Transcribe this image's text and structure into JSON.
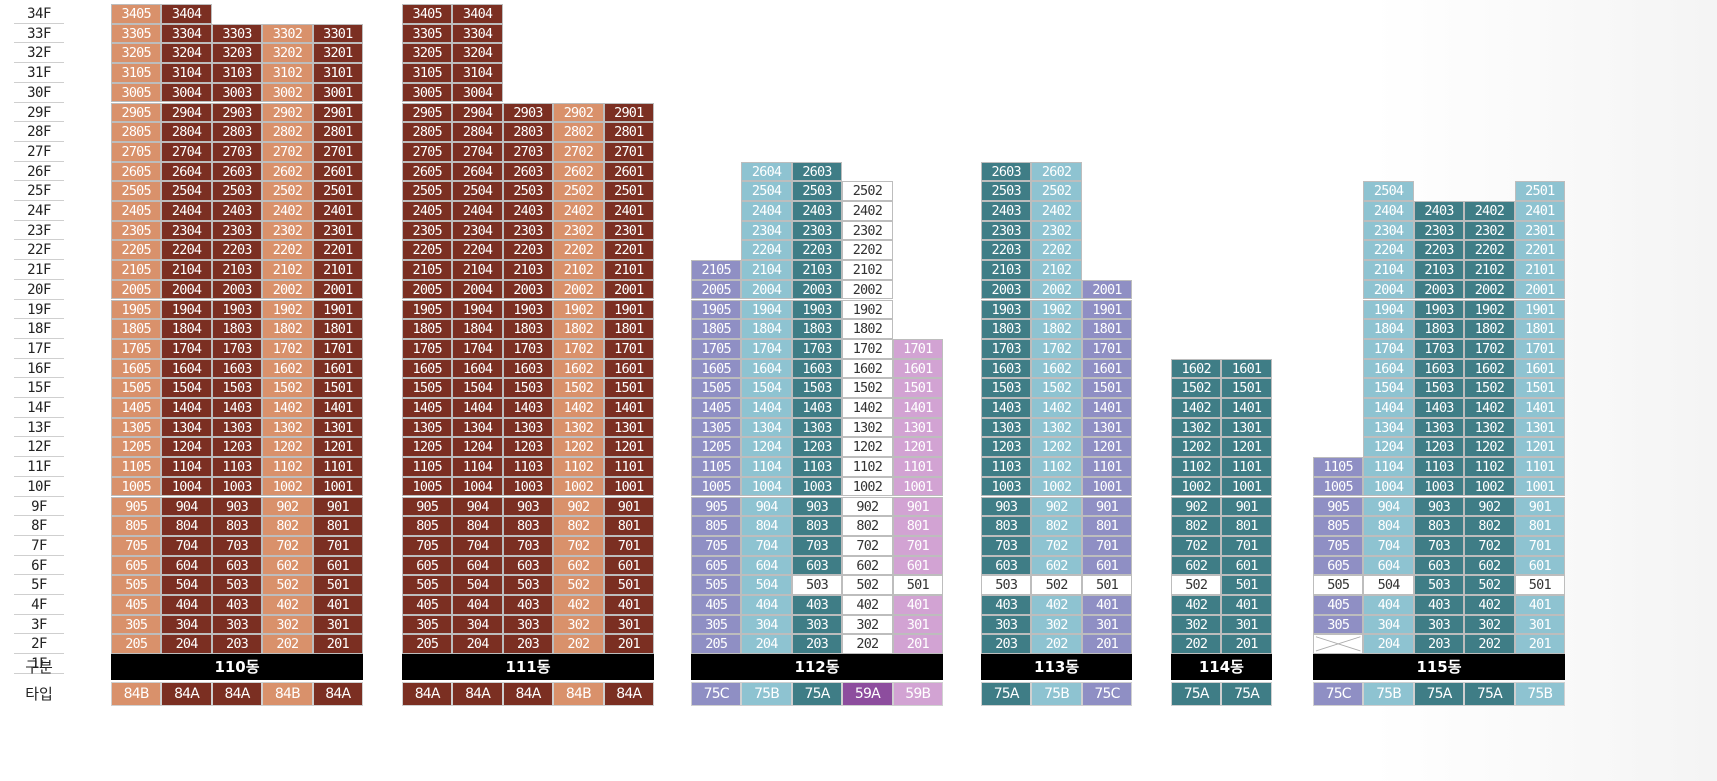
{
  "floors": [
    "34F",
    "33F",
    "32F",
    "31F",
    "30F",
    "29F",
    "28F",
    "27F",
    "26F",
    "25F",
    "24F",
    "23F",
    "22F",
    "21F",
    "20F",
    "19F",
    "18F",
    "17F",
    "16F",
    "15F",
    "14F",
    "13F",
    "12F",
    "11F",
    "10F",
    "9F",
    "8F",
    "7F",
    "6F",
    "5F",
    "4F",
    "3F",
    "2F",
    "1F"
  ],
  "row_labels": {
    "building": "구분",
    "type": "타입"
  },
  "colors": {
    "tan": "#d9916b",
    "brown": "#7b2f22",
    "purple": "#8f8fc4",
    "lightblue": "#8ec3d1",
    "teal": "#3f7d86",
    "white": "#ffffff",
    "pink": "#d2a3d3",
    "violet": "#8d4d9e"
  },
  "buildings": [
    {
      "name": "110동",
      "columns": [
        {
          "suffix": "05",
          "top": 34,
          "color": "tan",
          "overrides": {
            "1": {
              "color": "tan"
            }
          }
        },
        {
          "suffix": "04",
          "top": 34,
          "color": "brown"
        },
        {
          "suffix": "03",
          "top": 33,
          "color": "brown",
          "overrides": {
            "1": {
              "cross": true
            }
          }
        },
        {
          "suffix": "02",
          "top": 33,
          "color": "tan"
        },
        {
          "suffix": "01",
          "top": 33,
          "color": "brown"
        }
      ],
      "types": [
        {
          "label": "84B",
          "color": "tan"
        },
        {
          "label": "84A",
          "color": "brown"
        },
        {
          "label": "84A",
          "color": "brown"
        },
        {
          "label": "84B",
          "color": "tan"
        },
        {
          "label": "84A",
          "color": "brown"
        }
      ]
    },
    {
      "name": "111동",
      "columns": [
        {
          "suffix": "05",
          "top": 34,
          "color": "brown"
        },
        {
          "suffix": "04",
          "top": 34,
          "color": "brown"
        },
        {
          "suffix": "03",
          "top": 29,
          "color": "brown",
          "overrides": {
            "1": {
              "cross": true
            }
          }
        },
        {
          "suffix": "02",
          "top": 29,
          "color": "tan"
        },
        {
          "suffix": "01",
          "top": 29,
          "color": "brown"
        }
      ],
      "types": [
        {
          "label": "84A",
          "color": "brown"
        },
        {
          "label": "84A",
          "color": "brown"
        },
        {
          "label": "84A",
          "color": "brown"
        },
        {
          "label": "84B",
          "color": "tan"
        },
        {
          "label": "84A",
          "color": "brown"
        }
      ]
    },
    {
      "name": "112동",
      "columns": [
        {
          "suffix": "05",
          "top": 21,
          "color": "purple"
        },
        {
          "suffix": "04",
          "top": 26,
          "color": "lightblue"
        },
        {
          "suffix": "03",
          "top": 26,
          "color": "teal",
          "overrides": {
            "5": {
              "color": "white"
            },
            "1": {
              "cross": true
            }
          }
        },
        {
          "suffix": "02",
          "top": 25,
          "color": "white"
        },
        {
          "suffix": "01",
          "top": 17,
          "color": "pink",
          "overrides": {
            "5": {
              "color": "white"
            }
          }
        }
      ],
      "types": [
        {
          "label": "75C",
          "color": "purple"
        },
        {
          "label": "75B",
          "color": "lightblue"
        },
        {
          "label": "75A",
          "color": "teal"
        },
        {
          "label": "59A",
          "color": "violet"
        },
        {
          "label": "59B",
          "color": "pink"
        }
      ]
    },
    {
      "name": "113동",
      "columns": [
        {
          "suffix": "03",
          "top": 26,
          "color": "teal",
          "overrides": {
            "5": {
              "color": "white"
            },
            "1": {
              "cross": true
            }
          }
        },
        {
          "suffix": "02",
          "top": 26,
          "color": "lightblue",
          "overrides": {
            "5": {
              "color": "white"
            }
          }
        },
        {
          "suffix": "01",
          "top": 20,
          "color": "purple",
          "overrides": {
            "5": {
              "color": "white"
            }
          }
        }
      ],
      "types": [
        {
          "label": "75A",
          "color": "teal"
        },
        {
          "label": "75B",
          "color": "lightblue"
        },
        {
          "label": "75C",
          "color": "purple"
        }
      ]
    },
    {
      "name": "114동",
      "columns": [
        {
          "suffix": "02",
          "top": 16,
          "color": "teal",
          "overrides": {
            "5": {
              "color": "white"
            }
          }
        },
        {
          "suffix": "01",
          "top": 16,
          "color": "teal"
        }
      ],
      "types": [
        {
          "label": "75A",
          "color": "teal"
        },
        {
          "label": "75A",
          "color": "teal"
        }
      ]
    },
    {
      "name": "115동",
      "columns": [
        {
          "suffix": "05",
          "top": 11,
          "color": "purple",
          "overrides": {
            "5": {
              "color": "white"
            },
            "2": {
              "cross": true
            },
            "1": {
              "cross": true
            }
          }
        },
        {
          "suffix": "04",
          "top": 25,
          "color": "lightblue",
          "overrides": {
            "5": {
              "color": "white"
            }
          }
        },
        {
          "suffix": "03",
          "top": 24,
          "color": "teal",
          "overrides": {
            "1": {
              "cross": true
            }
          }
        },
        {
          "suffix": "02",
          "top": 24,
          "color": "teal"
        },
        {
          "suffix": "01",
          "top": 25,
          "color": "lightblue",
          "overrides": {
            "5": {
              "color": "white"
            }
          }
        }
      ],
      "types": [
        {
          "label": "75C",
          "color": "purple"
        },
        {
          "label": "75B",
          "color": "lightblue"
        },
        {
          "label": "75A",
          "color": "teal"
        },
        {
          "label": "75A",
          "color": "teal"
        },
        {
          "label": "75B",
          "color": "lightblue"
        }
      ]
    }
  ]
}
